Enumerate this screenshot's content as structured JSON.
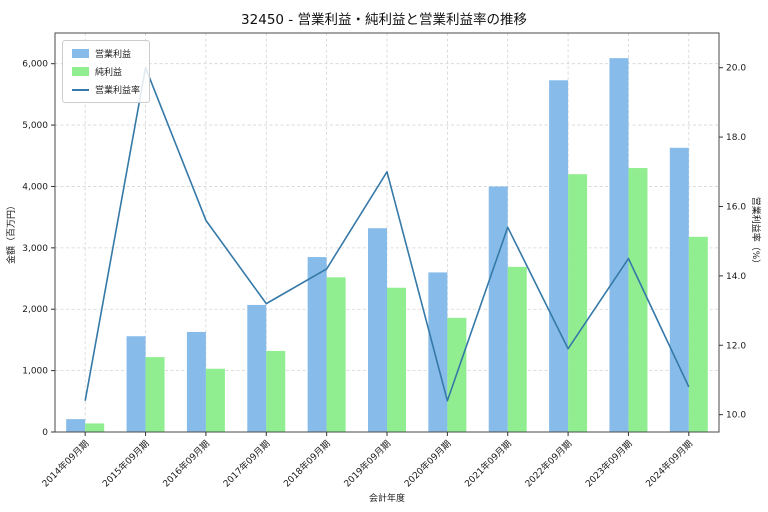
{
  "chart_data": {
    "type": "bar",
    "subtype": "grouped-bars-with-line",
    "title": "32450 - 営業利益・純利益と営業利益率の推移",
    "xlabel": "会計年度",
    "grid": true,
    "legend_position": "upper-left",
    "categories": [
      "2014年09月期",
      "2015年09月期",
      "2016年09月期",
      "2017年09月期",
      "2018年09月期",
      "2019年09月期",
      "2020年09月期",
      "2021年09月期",
      "2022年09月期",
      "2023年09月期",
      "2024年09月期"
    ],
    "left_axis": {
      "label": "金額（百万円）",
      "range": [
        0,
        6500
      ],
      "ticks": [
        {
          "v": 0,
          "label": "0"
        },
        {
          "v": 1000,
          "label": "1,000"
        },
        {
          "v": 2000,
          "label": "2,000"
        },
        {
          "v": 3000,
          "label": "3,000"
        },
        {
          "v": 4000,
          "label": "4,000"
        },
        {
          "v": 5000,
          "label": "5,000"
        },
        {
          "v": 6000,
          "label": "6,000"
        }
      ]
    },
    "right_axis": {
      "label": "営業利益率（%）",
      "range": [
        9.5,
        21.0
      ],
      "ticks": [
        {
          "v": 10,
          "label": "10.0"
        },
        {
          "v": 12,
          "label": "12.0"
        },
        {
          "v": 14,
          "label": "14.0"
        },
        {
          "v": 16,
          "label": "16.0"
        },
        {
          "v": 18,
          "label": "18.0"
        },
        {
          "v": 20,
          "label": "20.0"
        }
      ]
    },
    "series": [
      {
        "name": "営業利益",
        "color": "#87BCEA",
        "values": [
          210,
          1560,
          1630,
          2070,
          2850,
          3320,
          2600,
          4000,
          5730,
          6090,
          4630
        ]
      },
      {
        "name": "純利益",
        "color": "#90EE90",
        "values": [
          140,
          1220,
          1030,
          1320,
          2520,
          2350,
          1860,
          2690,
          4200,
          4300,
          3180
        ]
      }
    ],
    "line_series": {
      "name": "営業利益率",
      "color": "#3579A8",
      "values": [
        10.4,
        20.0,
        15.6,
        13.2,
        14.2,
        17.0,
        10.4,
        15.4,
        11.9,
        14.5,
        10.8
      ]
    }
  }
}
